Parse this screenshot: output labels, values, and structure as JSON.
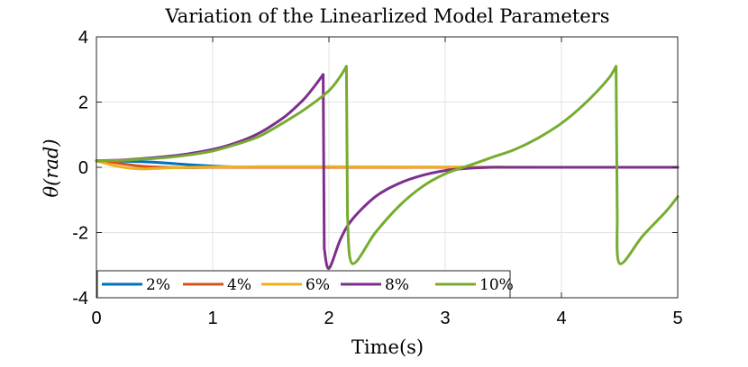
{
  "chart_data": {
    "type": "line",
    "title": "Variation of the Linearlized Model Parameters",
    "xlabel": "Time(s)",
    "ylabel": "θ(rad)",
    "xlim": [
      0,
      5
    ],
    "ylim": [
      -4,
      4
    ],
    "xticks": [
      "0",
      "1",
      "2",
      "3",
      "4",
      "5"
    ],
    "yticks": [
      "4",
      "2",
      "0",
      "-2",
      "-4"
    ],
    "grid": true,
    "legend_position": "bottom-left",
    "series": [
      {
        "name": "2%",
        "color": "#0072bd",
        "x": [
          0,
          0.2,
          0.4,
          0.6,
          0.8,
          1.0,
          1.2,
          1.4,
          1.6,
          2.0,
          3.0,
          4.0,
          5.0
        ],
        "y": [
          0.2,
          0.19,
          0.17,
          0.13,
          0.08,
          0.04,
          0.01,
          0.0,
          0.0,
          0.0,
          0.0,
          0.0,
          0.0
        ]
      },
      {
        "name": "4%",
        "color": "#d95319",
        "x": [
          0,
          0.1,
          0.2,
          0.3,
          0.4,
          0.5,
          0.6,
          0.8,
          1.0,
          1.5,
          2.0,
          3.0,
          4.0,
          5.0
        ],
        "y": [
          0.2,
          0.17,
          0.12,
          0.07,
          0.03,
          0.01,
          0.0,
          -0.01,
          0.0,
          0.0,
          0.0,
          0.0,
          0.0,
          0.0
        ]
      },
      {
        "name": "6%",
        "color": "#edb120",
        "x": [
          0,
          0.1,
          0.2,
          0.3,
          0.4,
          0.5,
          0.6,
          0.8,
          1.0,
          1.5,
          2.0,
          3.0,
          4.0,
          5.0
        ],
        "y": [
          0.2,
          0.1,
          0.02,
          -0.03,
          -0.05,
          -0.04,
          -0.02,
          0.0,
          0.01,
          0.02,
          0.02,
          0.01,
          0.0,
          0.0
        ]
      },
      {
        "name": "8%",
        "color": "#7e2f8e",
        "x": [
          0,
          0.2,
          0.4,
          0.6,
          0.8,
          1.0,
          1.2,
          1.4,
          1.6,
          1.7,
          1.8,
          1.9,
          1.95,
          1.96,
          2.0,
          2.1,
          2.2,
          2.4,
          2.6,
          2.8,
          3.0,
          3.2,
          3.4,
          3.6,
          4.0,
          4.5,
          5.0
        ],
        "y": [
          0.2,
          0.22,
          0.27,
          0.33,
          0.42,
          0.55,
          0.75,
          1.05,
          1.5,
          1.8,
          2.15,
          2.6,
          2.85,
          -2.5,
          -3.1,
          -2.2,
          -1.6,
          -0.9,
          -0.5,
          -0.25,
          -0.1,
          -0.03,
          0.0,
          0.0,
          0.0,
          0.0,
          0.0
        ]
      },
      {
        "name": "10%",
        "color": "#77ac30",
        "x": [
          0,
          0.2,
          0.4,
          0.6,
          0.8,
          1.0,
          1.2,
          1.4,
          1.6,
          1.8,
          2.0,
          2.1,
          2.15,
          2.16,
          2.2,
          2.4,
          2.6,
          2.8,
          3.0,
          3.2,
          3.4,
          3.6,
          3.8,
          4.0,
          4.2,
          4.4,
          4.47,
          4.48,
          4.5,
          4.7,
          4.9,
          5.0
        ],
        "y": [
          0.2,
          0.21,
          0.25,
          0.3,
          0.38,
          0.5,
          0.7,
          0.95,
          1.35,
          1.8,
          2.35,
          2.8,
          3.1,
          -1.5,
          -2.95,
          -2.0,
          -1.2,
          -0.6,
          -0.2,
          0.05,
          0.3,
          0.55,
          0.9,
          1.35,
          1.95,
          2.7,
          3.1,
          -1.5,
          -2.95,
          -2.1,
          -1.35,
          -0.9
        ]
      }
    ]
  }
}
